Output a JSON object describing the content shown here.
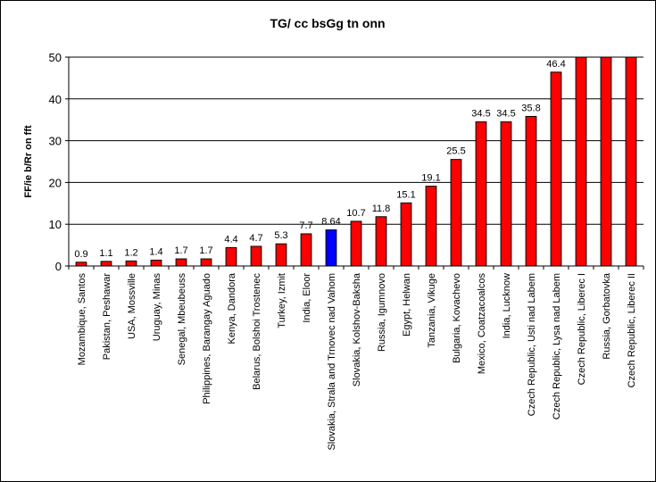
{
  "chart_data": {
    "type": "bar",
    "title": "TG/ cc bsGg tn onn",
    "xlabel": "",
    "ylabel": "FF/ie b/Rr on fft",
    "ylim": [
      0,
      50
    ],
    "yticks": [
      0,
      10,
      20,
      30,
      40,
      50
    ],
    "grid": true,
    "legend": "none",
    "colors": {
      "default_bar": "#ff0000",
      "highlight_bar": "#0000ff",
      "bar_stroke": "#000000",
      "grid": "#000000"
    },
    "categories": [
      "Mozambique, Santos",
      "Pakistan, Peshawar",
      "USA, Mossville",
      "Uruguay, Minas",
      "Senegal, Mbeubeuss",
      "Philippines, Barangay Aguado",
      "Kenya, Dandora",
      "Belarus, Bolshoi Trostenec",
      "Turkey, Izmit",
      "India, Eloor",
      "Slovakia, Strala and Trnovec nad Vahom",
      "Slovakia, Kolshov-Baksha",
      "Russia, Igumnovo",
      "Egypt, Helwan",
      "Tanzania, Vikuge",
      "Bulgaria, Kovachevo",
      "Mexico, Coatzacoalcos",
      "India, Lucknow",
      "Czech Republic, Usti nad Labem",
      "Czech Republic, Lysa nad Labem",
      "Czech Republic, Liberec I",
      "Russia, Gorbatovka",
      "Czech Republic, Liberec II"
    ],
    "values": [
      0.9,
      1.1,
      1.2,
      1.4,
      1.7,
      1.7,
      4.4,
      4.7,
      5.3,
      7.7,
      8.64,
      10.7,
      11.8,
      15.1,
      19.1,
      25.5,
      34.5,
      34.5,
      35.8,
      46.4,
      50,
      50,
      50
    ],
    "data_labels": [
      "0.9",
      "1.1",
      "1.2",
      "1.4",
      "1.7",
      "1.7",
      "4.4",
      "4.7",
      "5.3",
      "7.7",
      "8.64",
      "10.7",
      "11.8",
      "15.1",
      "19.1",
      "25.5",
      "34.5",
      "34.5",
      "35.8",
      "46.4",
      "",
      "",
      ""
    ],
    "highlight_index": 10
  }
}
